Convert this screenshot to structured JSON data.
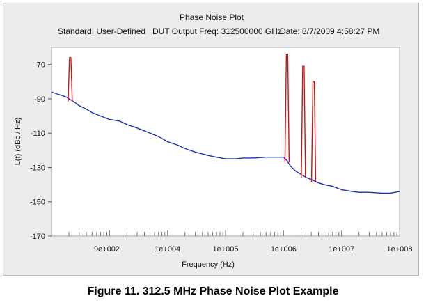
{
  "header": {
    "title": "Phase Noise Plot",
    "standard": "Standard: User-Defined",
    "dut_freq": "DUT Output Freq: 312500000 GHz",
    "date": "Date: 8/7/2009 4:58:27 PM"
  },
  "caption": "Figure 11. 312.5 MHz Phase Noise Plot Example",
  "colors": {
    "plot_bg": "#ffffff",
    "noise": "#1c2fb8",
    "spurs": "#d01010",
    "frame": "#ececec"
  },
  "chart_data": {
    "type": "line",
    "title": "Phase Noise Plot",
    "xlabel": "Frequency (Hz)",
    "ylabel": "L(f) (dBc / Hz)",
    "xscale": "log",
    "xlim": [
      100,
      100000000
    ],
    "ylim": [
      -170,
      -60
    ],
    "x_ticks": [
      900,
      10000,
      100000,
      1000000,
      10000000,
      100000000
    ],
    "x_tick_labels": [
      "9e+002",
      "1e+004",
      "1e+005",
      "1e+006",
      "1e+007",
      "1e+008"
    ],
    "y_ticks": [
      -70,
      -90,
      -110,
      -130,
      -150,
      -170
    ],
    "y_tick_labels": [
      "-70",
      "-90",
      "-110",
      "-130",
      "-150",
      "-170"
    ],
    "grid": false,
    "legend": "none",
    "series": [
      {
        "color": "#1c2fb8",
        "x": [
          100,
          120,
          150,
          180,
          200,
          250,
          300,
          400,
          500,
          700,
          1000,
          1500,
          2000,
          3000,
          5000,
          7000,
          10000,
          15000,
          20000,
          30000,
          50000,
          70000,
          100000,
          150000,
          200000,
          300000,
          500000,
          700000,
          1000000,
          1150000,
          1300000,
          1600000,
          2000000,
          2500000,
          3000000,
          4000000,
          5000000,
          7000000,
          10000000,
          15000000,
          20000000,
          30000000,
          50000000,
          70000000,
          100000000
        ],
        "y": [
          -86,
          -87,
          -88,
          -89,
          -90,
          -92,
          -94,
          -96,
          -98,
          -100,
          -102,
          -103,
          -105,
          -107,
          -110,
          -112,
          -115,
          -117,
          -119,
          -121,
          -123,
          -124,
          -125,
          -125,
          -124.5,
          -124.5,
          -124,
          -124,
          -124,
          -126,
          -129,
          -132,
          -134,
          -136,
          -137,
          -139,
          -140,
          -141,
          -143,
          -144,
          -144.5,
          -144.5,
          -145,
          -145,
          -144
        ]
      },
      {
        "color": "#d01010",
        "spurs": [
          {
            "x": 210,
            "y": -66
          },
          {
            "x": 1150000,
            "y": -64
          },
          {
            "x": 2200000,
            "y": -71
          },
          {
            "x": 3300000,
            "y": -80
          }
        ]
      }
    ]
  }
}
